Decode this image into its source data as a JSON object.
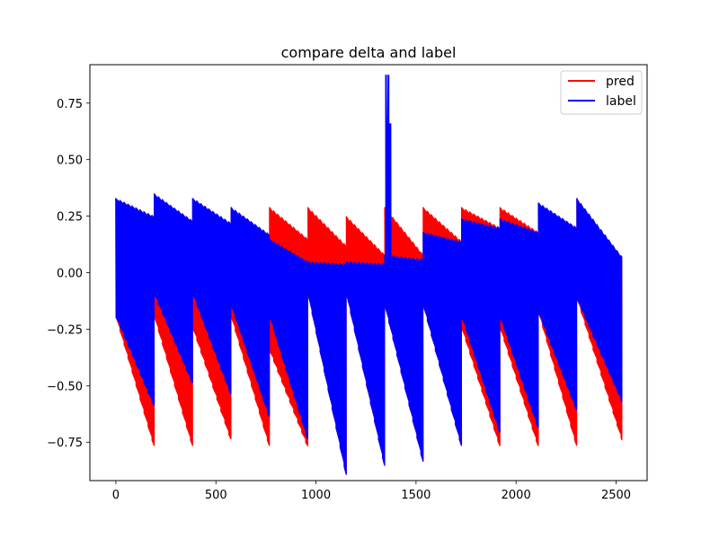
{
  "chart_data": {
    "type": "line",
    "title": "compare delta and label",
    "xlabel": "",
    "ylabel": "",
    "xlim": [
      -130,
      2655
    ],
    "ylim": [
      -0.92,
      0.92
    ],
    "xticks": [
      0,
      500,
      1000,
      1500,
      2000,
      2500
    ],
    "yticks": [
      -0.75,
      -0.5,
      -0.25,
      0.0,
      0.25,
      0.5,
      0.75
    ],
    "xtick_labels": [
      "0",
      "500",
      "1000",
      "1500",
      "2000",
      "2500"
    ],
    "ytick_labels": [
      "−0.75",
      "−0.50",
      "−0.25",
      "0.00",
      "0.25",
      "0.50",
      "0.75"
    ],
    "grid": false,
    "legend_position": "top-right",
    "segments": [
      {
        "start": 0,
        "end": 192,
        "pred_top": [
          0.33,
          0.25
        ],
        "pred_bottom": [
          -0.2,
          -0.78
        ],
        "label_top": [
          0.33,
          0.25
        ],
        "label_bottom": [
          -0.2,
          -0.6
        ]
      },
      {
        "start": 192,
        "end": 384,
        "pred_top": [
          0.35,
          0.23
        ],
        "pred_bottom": [
          -0.2,
          -0.78
        ],
        "label_top": [
          0.35,
          0.23
        ],
        "label_bottom": [
          -0.1,
          -0.5
        ]
      },
      {
        "start": 384,
        "end": 576,
        "pred_top": [
          0.33,
          0.22
        ],
        "pred_bottom": [
          -0.25,
          -0.75
        ],
        "label_top": [
          0.33,
          0.22
        ],
        "label_bottom": [
          -0.1,
          -0.55
        ]
      },
      {
        "start": 576,
        "end": 768,
        "pred_top": [
          0.29,
          0.17
        ],
        "pred_bottom": [
          -0.2,
          -0.78
        ],
        "label_top": [
          0.29,
          0.17
        ],
        "label_bottom": [
          -0.15,
          -0.65
        ]
      },
      {
        "start": 768,
        "end": 960,
        "pred_top": [
          0.29,
          0.15
        ],
        "pred_bottom": [
          -0.35,
          -0.78
        ],
        "label_top": [
          0.15,
          0.05
        ],
        "label_bottom": [
          -0.2,
          -0.75
        ]
      },
      {
        "start": 960,
        "end": 1152,
        "pred_top": [
          0.29,
          0.12
        ],
        "pred_bottom": [
          -0.1,
          -0.91
        ],
        "label_top": [
          0.05,
          0.04
        ],
        "label_bottom": [
          -0.1,
          -0.91
        ]
      },
      {
        "start": 1152,
        "end": 1344,
        "pred_top": [
          0.25,
          0.08
        ],
        "pred_bottom": [
          -0.1,
          -0.87
        ],
        "label_top": [
          0.05,
          0.04
        ],
        "label_bottom": [
          -0.1,
          -0.87
        ]
      },
      {
        "start": 1344,
        "end": 1536,
        "pred_top": [
          0.29,
          0.08
        ],
        "pred_bottom": [
          -0.15,
          -0.85
        ],
        "label_top": [
          0.08,
          0.06
        ],
        "label_bottom": [
          -0.15,
          -0.85
        ]
      },
      {
        "start": 1536,
        "end": 1728,
        "pred_top": [
          0.29,
          0.14
        ],
        "pred_bottom": [
          -0.15,
          -0.78
        ],
        "label_top": [
          0.18,
          0.14
        ],
        "label_bottom": [
          -0.15,
          -0.78
        ]
      },
      {
        "start": 1728,
        "end": 1920,
        "pred_top": [
          0.29,
          0.2
        ],
        "pred_bottom": [
          -0.25,
          -0.78
        ],
        "label_top": [
          0.24,
          0.2
        ],
        "label_bottom": [
          -0.2,
          -0.72
        ]
      },
      {
        "start": 1920,
        "end": 2112,
        "pred_top": [
          0.29,
          0.18
        ],
        "pred_bottom": [
          -0.25,
          -0.78
        ],
        "label_top": [
          0.24,
          0.18
        ],
        "label_bottom": [
          -0.2,
          -0.7
        ]
      },
      {
        "start": 2112,
        "end": 2304,
        "pred_top": [
          0.31,
          0.2
        ],
        "pred_bottom": [
          -0.18,
          -0.78
        ],
        "label_top": [
          0.31,
          0.2
        ],
        "label_bottom": [
          -0.18,
          -0.62
        ]
      },
      {
        "start": 2304,
        "end": 2530,
        "pred_top": [
          0.33,
          0.07
        ],
        "pred_bottom": [
          -0.12,
          -0.75
        ],
        "label_top": [
          0.33,
          0.07
        ],
        "label_bottom": [
          -0.12,
          -0.58
        ]
      }
    ],
    "spike": {
      "x": [
        1350,
        1362,
        1365,
        1372
      ],
      "values": [
        0.875,
        0.875,
        0.66,
        0.66
      ]
    },
    "series": [
      {
        "name": "pred",
        "color": "#ff0000"
      },
      {
        "name": "label",
        "color": "#0000ff"
      }
    ]
  }
}
